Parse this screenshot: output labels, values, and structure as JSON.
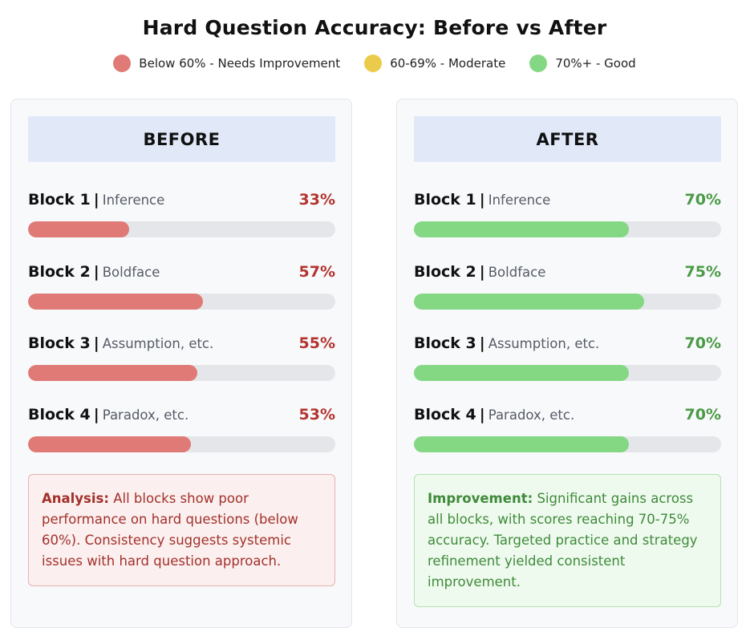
{
  "chart_data": {
    "type": "bar",
    "title": "Hard Question Accuracy: Before vs After",
    "legend": [
      {
        "label": "Below 60% - Needs Improvement",
        "color": "#e07a76"
      },
      {
        "label": "60-69% - Moderate",
        "color": "#ebcb4b"
      },
      {
        "label": "70%+ - Good",
        "color": "#84d884"
      }
    ],
    "legend_position": "top",
    "value_unit": "%",
    "value_range": [
      0,
      100
    ],
    "panels": [
      {
        "key": "before",
        "heading": "BEFORE",
        "bar_color": "#e07a76",
        "blocks": [
          {
            "name": "Block 1",
            "sep": "|",
            "category": "Inference",
            "value": 33,
            "value_label": "33%"
          },
          {
            "name": "Block 2",
            "sep": "|",
            "category": "Boldface",
            "value": 57,
            "value_label": "57%"
          },
          {
            "name": "Block 3",
            "sep": "|",
            "category": "Assumption, etc.",
            "value": 55,
            "value_label": "55%"
          },
          {
            "name": "Block 4",
            "sep": "|",
            "category": "Paradox, etc.",
            "value": 53,
            "value_label": "53%"
          }
        ],
        "note_lead": "Analysis:",
        "note_text": "All blocks show poor performance on hard questions (below 60%). Consistency suggests systemic issues with hard question approach."
      },
      {
        "key": "after",
        "heading": "AFTER",
        "bar_color": "#84d884",
        "blocks": [
          {
            "name": "Block 1",
            "sep": "|",
            "category": "Inference",
            "value": 70,
            "value_label": "70%"
          },
          {
            "name": "Block 2",
            "sep": "|",
            "category": "Boldface",
            "value": 75,
            "value_label": "75%"
          },
          {
            "name": "Block 3",
            "sep": "|",
            "category": "Assumption, etc.",
            "value": 70,
            "value_label": "70%"
          },
          {
            "name": "Block 4",
            "sep": "|",
            "category": "Paradox, etc.",
            "value": 70,
            "value_label": "70%"
          }
        ],
        "note_lead": "Improvement:",
        "note_text": "Significant gains across all blocks, with scores reaching 70-75% accuracy. Targeted practice and strategy refinement yielded consistent improvement."
      }
    ]
  }
}
